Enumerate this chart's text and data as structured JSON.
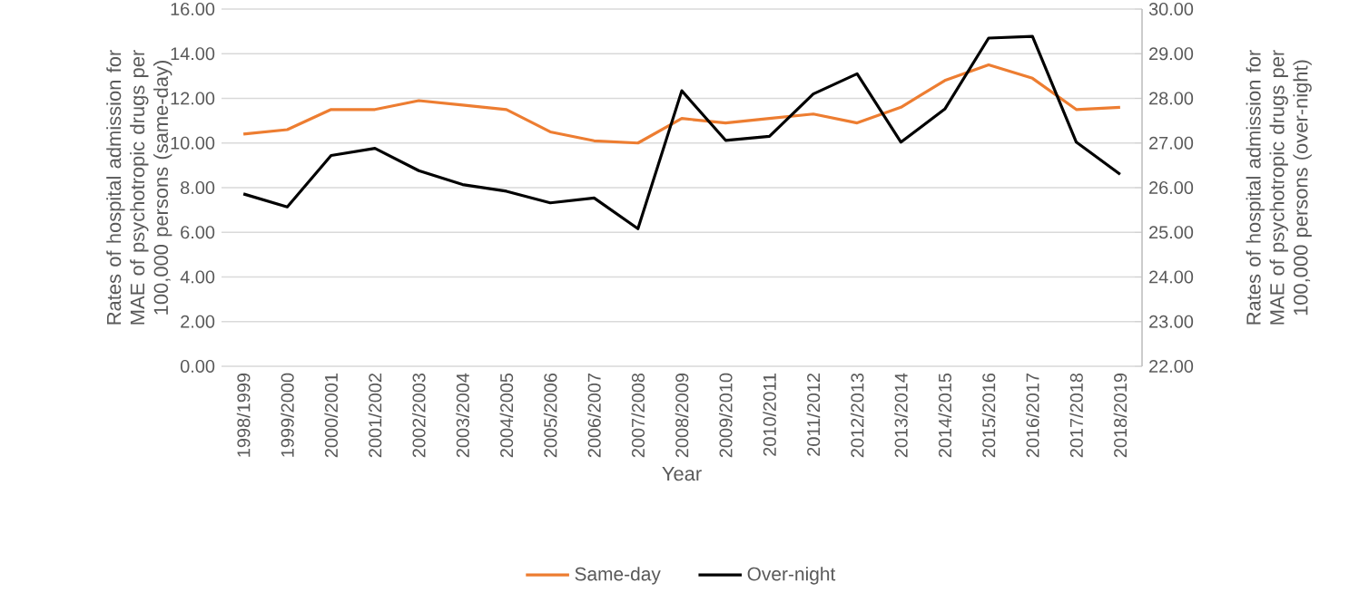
{
  "chart_data": {
    "type": "line",
    "xlabel": "Year",
    "ylabel": "Rates of hospital admission for MAE of psychotropic drugs per 100,000 persons (same-day)",
    "y2label": "Rates of hospital admission for MAE of psychotropic drugs per 100,000 persons (over-night)",
    "categories": [
      "1998/1999",
      "1999/2000",
      "2000/2001",
      "2001/2002",
      "2002/2003",
      "2003/2004",
      "2004/2005",
      "2005/2006",
      "2006/2007",
      "2007/2008",
      "2008/2009",
      "2009/2010",
      "2010/2011",
      "2011/2012",
      "2012/2013",
      "2013/2014",
      "2014/2015",
      "2015/2016",
      "2016/2017",
      "2017/2018",
      "2018/2019"
    ],
    "series": [
      {
        "name": "Same-day",
        "color": "#ed7d31",
        "axis": "y",
        "values": [
          10.4,
          10.6,
          11.5,
          11.5,
          11.9,
          11.7,
          11.5,
          10.5,
          10.1,
          10.0,
          11.1,
          10.9,
          11.1,
          11.3,
          10.9,
          11.6,
          12.8,
          13.5,
          12.9,
          11.5,
          11.6
        ]
      },
      {
        "name": "Over-night",
        "color": "#000000",
        "axis": "y2",
        "values": [
          25.86,
          25.57,
          26.72,
          26.88,
          26.38,
          26.07,
          25.92,
          25.66,
          25.77,
          25.08,
          28.17,
          27.06,
          27.15,
          28.1,
          28.55,
          27.02,
          27.76,
          29.35,
          29.39,
          27.02,
          26.3
        ]
      }
    ],
    "ylim": [
      0,
      16
    ],
    "yticks": [
      {
        "value": 0,
        "label": "0.00"
      },
      {
        "value": 2,
        "label": "2.00"
      },
      {
        "value": 4,
        "label": "4.00"
      },
      {
        "value": 6,
        "label": "6.00"
      },
      {
        "value": 8,
        "label": "8.00"
      },
      {
        "value": 10,
        "label": "10.00"
      },
      {
        "value": 12,
        "label": "12.00"
      },
      {
        "value": 14,
        "label": "14.00"
      },
      {
        "value": 16,
        "label": "16.00"
      }
    ],
    "y2lim": [
      22,
      30
    ],
    "y2ticks": [
      {
        "value": 22,
        "label": "22.00"
      },
      {
        "value": 23,
        "label": "23.00"
      },
      {
        "value": 24,
        "label": "24.00"
      },
      {
        "value": 25,
        "label": "25.00"
      },
      {
        "value": 26,
        "label": "26.00"
      },
      {
        "value": 27,
        "label": "27.00"
      },
      {
        "value": 28,
        "label": "28.00"
      },
      {
        "value": 29,
        "label": "29.00"
      },
      {
        "value": 30,
        "label": "30.00"
      }
    ],
    "grid": "y",
    "legend": "bottom",
    "marker": "none",
    "line_style": "solid"
  }
}
